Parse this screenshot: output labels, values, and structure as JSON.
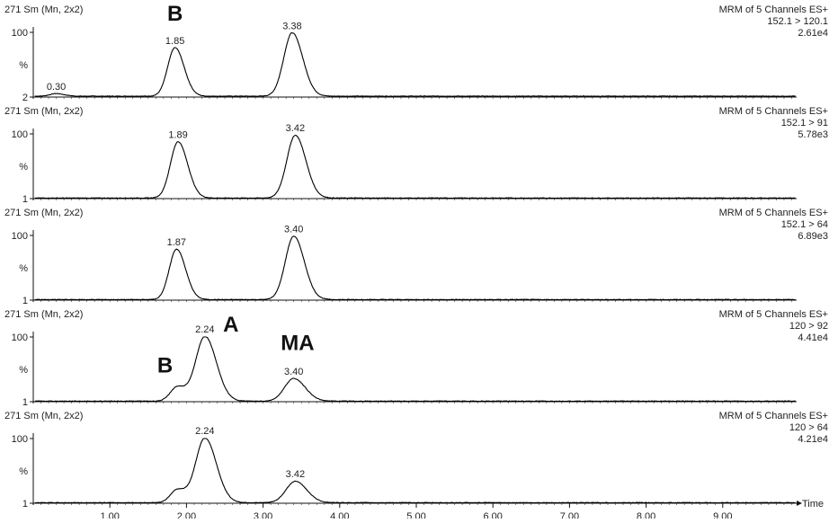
{
  "chart_data": {
    "type": "line",
    "xlabel": "Time",
    "xlim": [
      0.0,
      10.0
    ],
    "x_ticks": [
      "1.00",
      "2.00",
      "3.00",
      "4.00",
      "5.00",
      "6.00",
      "7.00",
      "8.00",
      "9.00"
    ],
    "panels": [
      {
        "header": "271 Sm (Mn, 2x2)",
        "method": "MRM of 5 Channels ES+",
        "transition": "152.1 > 120.1",
        "intensity": "2.61e4",
        "y_top_label": "100",
        "y_mid_label": "%",
        "y_bottom_label": "2",
        "baseline_pct": 2,
        "peaks": [
          {
            "label": "0.30",
            "rt": 0.3,
            "height": 4,
            "sigma": 0.08
          },
          {
            "label": "1.85",
            "rt": 1.85,
            "height": 75,
            "sigma": 0.095
          },
          {
            "label": "3.38",
            "rt": 3.38,
            "height": 98,
            "sigma": 0.11
          }
        ],
        "annotations": [
          {
            "text": "B",
            "x": 1.85,
            "y": 118
          }
        ]
      },
      {
        "header": "271 Sm (Mn, 2x2)",
        "method": "MRM of 5 Channels ES+",
        "transition": "152.1 > 91",
        "intensity": "5.78e3",
        "y_top_label": "100",
        "y_mid_label": "%",
        "y_bottom_label": "1",
        "baseline_pct": 1,
        "peaks": [
          {
            "label": "1.89",
            "rt": 1.89,
            "height": 87,
            "sigma": 0.1
          },
          {
            "label": "3.42",
            "rt": 3.42,
            "height": 97,
            "sigma": 0.11
          }
        ],
        "annotations": []
      },
      {
        "header": "271 Sm (Mn, 2x2)",
        "method": "MRM of 5 Channels ES+",
        "transition": "152.1 > 64",
        "intensity": "6.89e3",
        "y_top_label": "100",
        "y_mid_label": "%",
        "y_bottom_label": "1",
        "baseline_pct": 1,
        "peaks": [
          {
            "label": "1.87",
            "rt": 1.87,
            "height": 78,
            "sigma": 0.095
          },
          {
            "label": "3.40",
            "rt": 3.4,
            "height": 98,
            "sigma": 0.11
          }
        ],
        "annotations": []
      },
      {
        "header": "271 Sm (Mn, 2x2)",
        "method": "MRM of 5 Channels ES+",
        "transition": "120 > 92",
        "intensity": "4.41e4",
        "y_top_label": "100",
        "y_mid_label": "%",
        "y_bottom_label": "1",
        "baseline_pct": 1,
        "peaks": [
          {
            "label": "",
            "rt": 1.88,
            "height": 22,
            "sigma": 0.09
          },
          {
            "label": "2.24",
            "rt": 2.24,
            "height": 100,
            "sigma": 0.12
          },
          {
            "label": "3.40",
            "rt": 3.4,
            "height": 35,
            "sigma": 0.12
          }
        ],
        "annotations": [
          {
            "text": "A",
            "x": 2.58,
            "y": 108
          },
          {
            "text": "MA",
            "x": 3.45,
            "y": 80
          },
          {
            "text": "B",
            "x": 1.72,
            "y": 45
          }
        ]
      },
      {
        "header": "271 Sm (Mn, 2x2)",
        "method": "MRM of 5 Channels ES+",
        "transition": "120 > 64",
        "intensity": "4.21e4",
        "y_top_label": "100",
        "y_mid_label": "%",
        "y_bottom_label": "1",
        "baseline_pct": 1,
        "peaks": [
          {
            "label": "",
            "rt": 1.88,
            "height": 20,
            "sigma": 0.09
          },
          {
            "label": "2.24",
            "rt": 2.24,
            "height": 100,
            "sigma": 0.12
          },
          {
            "label": "3.42",
            "rt": 3.42,
            "height": 33,
            "sigma": 0.12
          }
        ],
        "annotations": []
      }
    ]
  }
}
